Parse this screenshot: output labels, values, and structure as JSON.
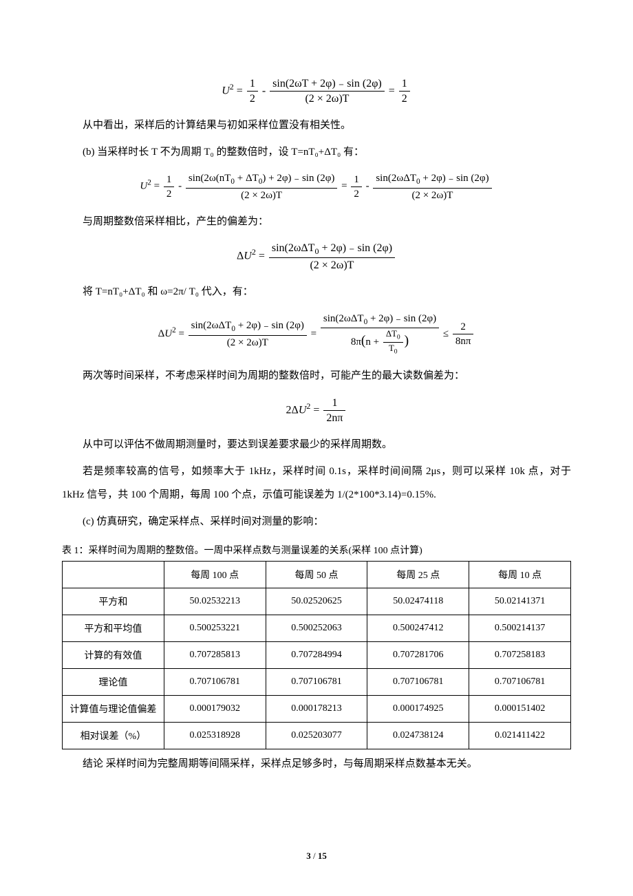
{
  "formulas": {
    "f1_left": "U",
    "f1_text": "从中看出，采样后的计算结果与初如采样位置没有相关性。",
    "item_b": "(b) 当采样时长 T 不为周期 T₀ 的整数倍时，设 T=nT₀+ΔT₀ 有：",
    "f2_text": "与周期整数倍采样相比，产生的偏差为：",
    "f3_text": "将 T=nT₀+ΔT₀ 和 ω=2π/ T₀ 代入，有：",
    "f4_text": "两次等时间采样，不考虑采样时间为周期的整数倍时，可能产生的最大读数偏差为：",
    "f5_text": "从中可以评估不做周期测量时，要达到误差要求最少的采样周期数。",
    "para_freq": "若是频率较高的信号，如频率大于 1kHz，采样时间 0.1s，采样时间间隔 2μs，则可以采样 10k 点，对于 1kHz 信号，共 100 个周期，每周 100 个点，示值可能误差为 1/(2*100*3.14)=0.15%.",
    "item_c": "(c) 仿真研究，确定采样点、采样时间对测量的影响："
  },
  "table1": {
    "caption": "表 1：采样时间为周期的整数倍。一周中采样点数与测量误差的关系(采样 100 点计算)",
    "headers": [
      "",
      "每周 100 点",
      "每周 50 点",
      "每周 25 点",
      "每周 10 点"
    ],
    "rows": [
      {
        "label": "平方和",
        "cells": [
          "50.02532213",
          "50.02520625",
          "50.02474118",
          "50.02141371"
        ]
      },
      {
        "label": "平方和平均值",
        "cells": [
          "0.500253221",
          "0.500252063",
          "0.500247412",
          "0.500214137"
        ]
      },
      {
        "label": "计算的有效值",
        "cells": [
          "0.707285813",
          "0.707284994",
          "0.707281706",
          "0.707258183"
        ]
      },
      {
        "label": "理论值",
        "cells": [
          "0.707106781",
          "0.707106781",
          "0.707106781",
          "0.707106781"
        ]
      },
      {
        "label": "计算值与理论值偏差",
        "cells": [
          "0.000179032",
          "0.000178213",
          "0.000174925",
          "0.000151402"
        ]
      },
      {
        "label": "相对误差（%）",
        "cells": [
          "0.025318928",
          "0.025203077",
          "0.024738124",
          "0.021411422"
        ]
      }
    ],
    "conclusion": "结论 采样时间为完整周期等间隔采样，采样点足够多时，与每周期采样点数基本无关。"
  },
  "footer": {
    "current": "3",
    "sep": " / ",
    "total": "15"
  },
  "style": {
    "text_color": "#000000",
    "bg_color": "#ffffff",
    "body_fontsize": 15,
    "formula_fontsize": 16,
    "table_fontsize": 14,
    "line_height": 2.3,
    "border_color": "#000000"
  }
}
